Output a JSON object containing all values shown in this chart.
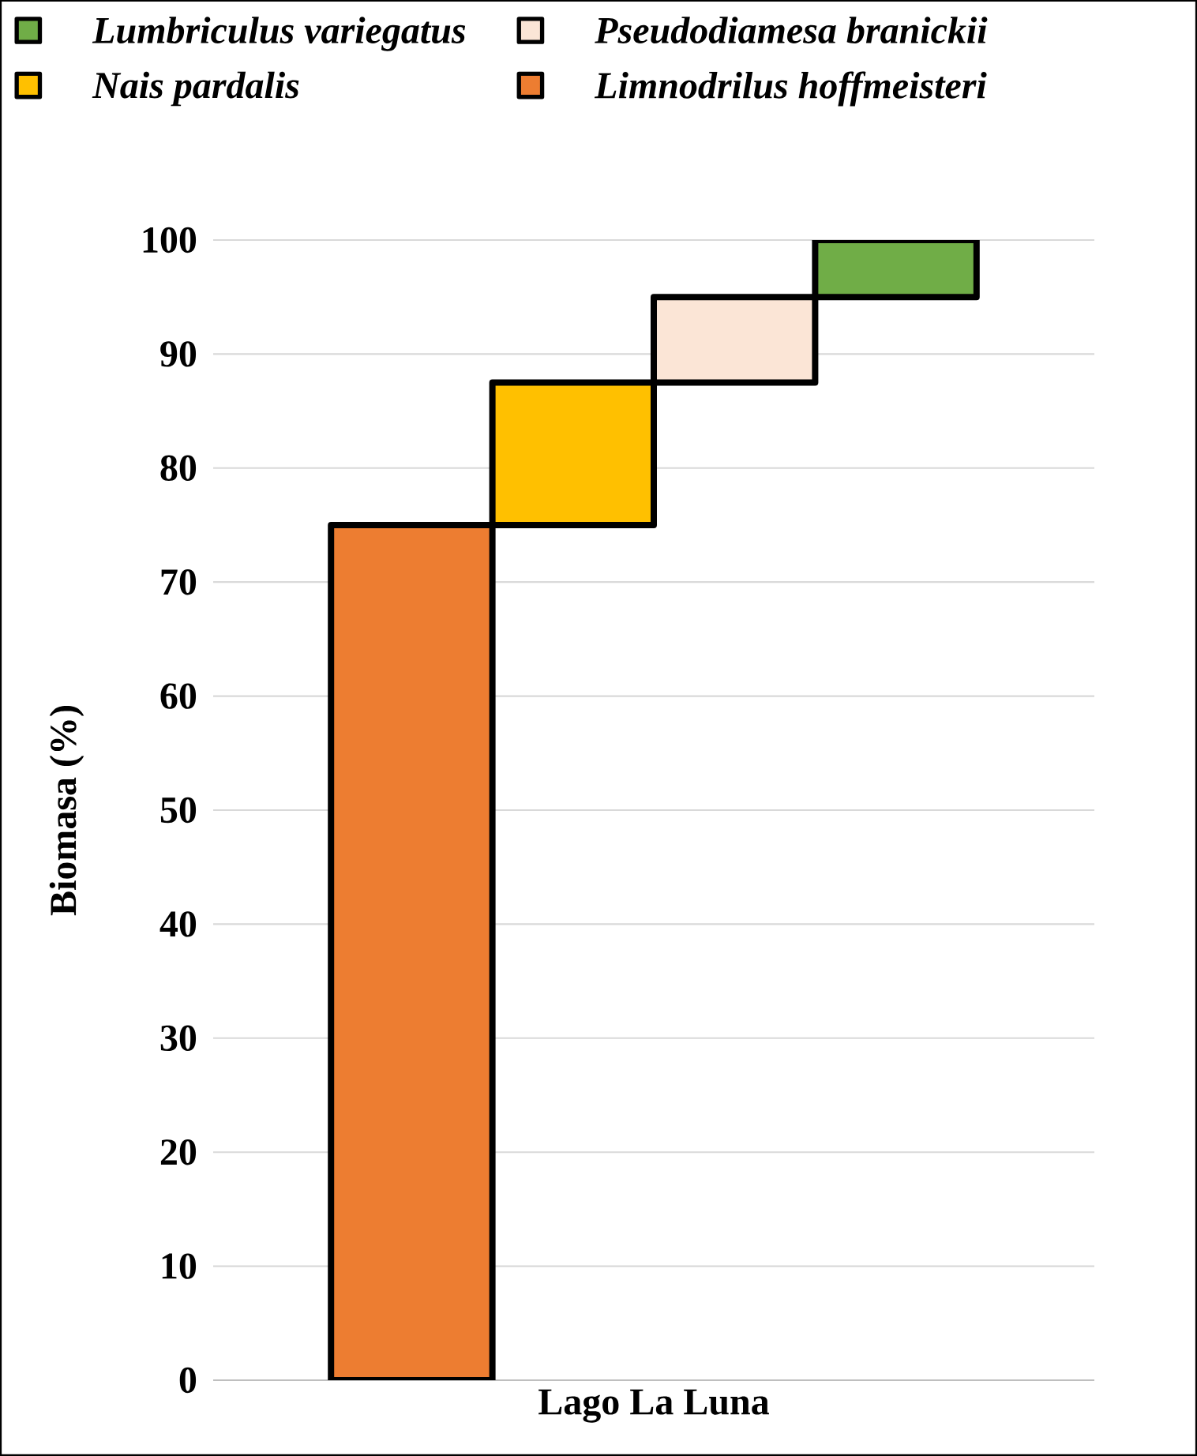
{
  "chart_data": {
    "type": "bar",
    "xlabel": "Lago La Luna",
    "ylabel": "Biomasa  (%)",
    "categories": [
      null,
      null,
      null,
      null
    ],
    "series": [
      {
        "name": "Lumbriculus variegatus",
        "color": "#70ad47",
        "values": [
          null,
          null,
          null,
          5
        ],
        "base": [
          null,
          null,
          null,
          95
        ]
      },
      {
        "name": "Pseudodiamesa branickii",
        "color": "#fbe5d6",
        "values": [
          null,
          null,
          7.5,
          null
        ],
        "base": [
          null,
          null,
          87.5,
          null
        ]
      },
      {
        "name": "Nais pardalis",
        "color": "#ffc000",
        "values": [
          null,
          12.5,
          null,
          null
        ],
        "base": [
          null,
          75,
          null,
          null
        ]
      },
      {
        "name": "Limnodrilus hoffmeisteri",
        "color": "#ed7d31",
        "values": [
          75,
          null,
          null,
          null
        ],
        "base": [
          0,
          null,
          null,
          null
        ]
      }
    ],
    "ylim": [
      0,
      100
    ],
    "yticks": [
      0,
      10,
      20,
      30,
      40,
      50,
      60,
      70,
      80,
      90,
      100
    ],
    "grid": "y",
    "legend": "top"
  }
}
